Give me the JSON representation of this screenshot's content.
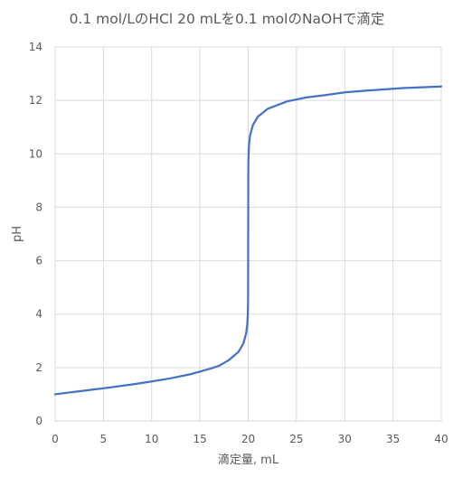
{
  "chart_data": {
    "type": "line",
    "title": "0.1 mol/LのHCl 20 mLを0.1 molのNaOHで滴定",
    "xlabel": "滴定量, mL",
    "ylabel": "pH",
    "xlim": [
      0,
      40
    ],
    "ylim": [
      0,
      14
    ],
    "x_ticks": [
      0,
      5,
      10,
      15,
      20,
      25,
      30,
      35,
      40
    ],
    "y_ticks": [
      0,
      2,
      4,
      6,
      8,
      10,
      12,
      14
    ],
    "grid": true,
    "legend": "none",
    "series": [
      {
        "color": "#4472c4",
        "x": [
          0,
          2,
          4,
          6,
          8,
          10,
          12,
          14,
          15,
          16,
          17,
          18,
          19,
          19.5,
          19.8,
          19.9,
          19.95,
          19.98,
          19.99,
          20,
          20.01,
          20.02,
          20.05,
          20.1,
          20.2,
          20.5,
          21,
          22,
          24,
          26,
          28,
          30,
          32,
          34,
          36,
          38,
          40
        ],
        "y": [
          1.0,
          1.09,
          1.18,
          1.27,
          1.37,
          1.48,
          1.6,
          1.75,
          1.85,
          1.95,
          2.07,
          2.28,
          2.59,
          2.9,
          3.3,
          3.6,
          3.9,
          4.3,
          4.6,
          7.0,
          9.4,
          9.7,
          10.1,
          10.4,
          10.7,
          11.09,
          11.39,
          11.68,
          11.96,
          12.11,
          12.2,
          12.3,
          12.36,
          12.41,
          12.46,
          12.49,
          12.52
        ]
      }
    ]
  }
}
